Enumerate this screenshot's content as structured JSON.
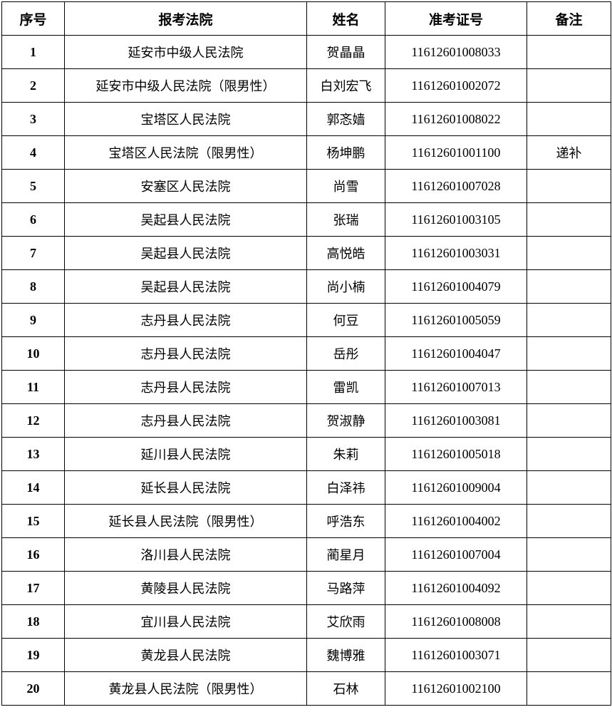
{
  "table": {
    "headers": [
      "序号",
      "报考法院",
      "姓名",
      "准考证号",
      "备注"
    ],
    "rows": [
      [
        "1",
        "延安市中级人民法院",
        "贺晶晶",
        "11612601008033",
        ""
      ],
      [
        "2",
        "延安市中级人民法院（限男性）",
        "白刘宏飞",
        "11612601002072",
        ""
      ],
      [
        "3",
        "宝塔区人民法院",
        "郭忞嫱",
        "11612601008022",
        ""
      ],
      [
        "4",
        "宝塔区人民法院（限男性）",
        "杨坤鹏",
        "11612601001100",
        "递补"
      ],
      [
        "5",
        "安塞区人民法院",
        "尚雪",
        "11612601007028",
        ""
      ],
      [
        "6",
        "吴起县人民法院",
        "张瑞",
        "11612601003105",
        ""
      ],
      [
        "7",
        "吴起县人民法院",
        "高悦皓",
        "11612601003031",
        ""
      ],
      [
        "8",
        "吴起县人民法院",
        "尚小楠",
        "11612601004079",
        ""
      ],
      [
        "9",
        "志丹县人民法院",
        "何豆",
        "11612601005059",
        ""
      ],
      [
        "10",
        "志丹县人民法院",
        "岳彤",
        "11612601004047",
        ""
      ],
      [
        "11",
        "志丹县人民法院",
        "雷凯",
        "11612601007013",
        ""
      ],
      [
        "12",
        "志丹县人民法院",
        "贺淑静",
        "11612601003081",
        ""
      ],
      [
        "13",
        "延川县人民法院",
        "朱莉",
        "11612601005018",
        ""
      ],
      [
        "14",
        "延长县人民法院",
        "白泽祎",
        "11612601009004",
        ""
      ],
      [
        "15",
        "延长县人民法院（限男性）",
        "呼浩东",
        "11612601004002",
        ""
      ],
      [
        "16",
        "洛川县人民法院",
        "蔺星月",
        "11612601007004",
        ""
      ],
      [
        "17",
        "黄陵县人民法院",
        "马路萍",
        "11612601004092",
        ""
      ],
      [
        "18",
        "宜川县人民法院",
        "艾欣雨",
        "11612601008008",
        ""
      ],
      [
        "19",
        "黄龙县人民法院",
        "魏博雅",
        "11612601003071",
        ""
      ],
      [
        "20",
        "黄龙县人民法院（限男性）",
        "石林",
        "11612601002100",
        ""
      ]
    ]
  }
}
